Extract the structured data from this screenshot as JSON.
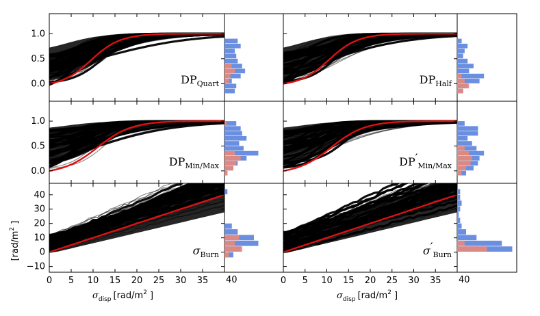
{
  "figure": {
    "shared_xlabel": {
      "symbol": "σ",
      "sub": "disp",
      "unit": "[rad/m",
      "sup": "2",
      "close": " ]"
    },
    "shared_ylabel": {
      "text": "[rad/m",
      "sup": "2",
      "close": " ]"
    },
    "hist_corner_label": "40"
  },
  "colors": {
    "curves": "#000000",
    "mean_line": "#dd1111",
    "hist_blue": "#6b8fe0",
    "hist_red": "#e8887a"
  },
  "chart_data": [
    {
      "id": "dp-quart",
      "type": "line",
      "col": 0,
      "row": 0,
      "label_main": "DP",
      "label_sub": "Quart",
      "prime": "",
      "xlim": [
        0,
        40
      ],
      "ylim": [
        -0.35,
        1.4
      ],
      "yticks": [
        "0.0",
        "0.5",
        "1.0"
      ],
      "ytick_values": [
        0,
        0.5,
        1.0
      ],
      "kind": "sigmoid",
      "mean_curve": {
        "start": 0.0,
        "k": 0.14,
        "mid": 9.5
      },
      "envelope": {
        "low_start": -0.02,
        "high_start": 0.62
      },
      "hist": {
        "bins": [
          -0.15,
          -0.05,
          0.05,
          0.15,
          0.25,
          0.35,
          0.45,
          0.55,
          0.65,
          0.75,
          0.85
        ],
        "blue": [
          14,
          16,
          10,
          22,
          28,
          24,
          18,
          16,
          14,
          22,
          18
        ],
        "red": [
          0,
          0,
          6,
          8,
          14,
          10,
          0,
          0,
          0,
          0,
          0
        ]
      }
    },
    {
      "id": "dp-half",
      "type": "line",
      "col": 1,
      "row": 0,
      "label_main": "DP",
      "label_sub": "Half",
      "prime": "",
      "xlim": [
        0,
        40
      ],
      "ylim": [
        -0.35,
        1.4
      ],
      "yticks": [
        "0.0",
        "0.5",
        "1.0"
      ],
      "ytick_values": [
        0,
        0.5,
        1.0
      ],
      "kind": "sigmoid",
      "mean_curve": {
        "start": 0.0,
        "k": 0.14,
        "mid": 10.5
      },
      "envelope": {
        "low_start": -0.02,
        "high_start": 0.62
      },
      "hist": {
        "bins": [
          -0.15,
          -0.05,
          0.05,
          0.15,
          0.25,
          0.35,
          0.45,
          0.55,
          0.65,
          0.75,
          0.85
        ],
        "blue": [
          8,
          14,
          30,
          36,
          16,
          22,
          14,
          8,
          10,
          14,
          6
        ],
        "red": [
          8,
          16,
          10,
          6,
          0,
          0,
          0,
          0,
          0,
          0,
          0
        ]
      }
    },
    {
      "id": "dp-minmax",
      "type": "line",
      "col": 0,
      "row": 1,
      "label_main": "DP",
      "label_sub": "Min/Max",
      "prime": "",
      "xlim": [
        0,
        40
      ],
      "ylim": [
        -0.25,
        1.4
      ],
      "yticks": [
        "0.0",
        "0.5",
        "1.0"
      ],
      "ytick_values": [
        0,
        0.5,
        1.0
      ],
      "kind": "sigmoid",
      "mean_curve": {
        "start": 0.0,
        "k": 0.12,
        "mid": 11
      },
      "envelope": {
        "low_start": 0.05,
        "high_start": 0.82
      },
      "hist": {
        "bins": [
          -0.05,
          0.05,
          0.15,
          0.25,
          0.35,
          0.45,
          0.55,
          0.65,
          0.75,
          0.85,
          0.95
        ],
        "blue": [
          4,
          12,
          18,
          30,
          46,
          26,
          20,
          30,
          24,
          22,
          16
        ],
        "red": [
          4,
          12,
          16,
          22,
          14,
          0,
          0,
          0,
          0,
          0,
          3
        ]
      }
    },
    {
      "id": "dp-minmax-prime",
      "type": "line",
      "col": 1,
      "row": 1,
      "label_main": "DP",
      "label_sub": "Min/Max",
      "prime": "′",
      "xlim": [
        0,
        40
      ],
      "ylim": [
        -0.25,
        1.4
      ],
      "yticks": [
        "0.0",
        "0.5",
        "1.0"
      ],
      "ytick_values": [
        0,
        0.5,
        1.0
      ],
      "kind": "sigmoid",
      "mean_curve": {
        "start": 0.0,
        "k": 0.12,
        "mid": 11
      },
      "envelope": {
        "low_start": 0.05,
        "high_start": 0.82
      },
      "hist": {
        "bins": [
          -0.05,
          0.05,
          0.15,
          0.25,
          0.35,
          0.45,
          0.55,
          0.65,
          0.75,
          0.85,
          0.95
        ],
        "blue": [
          12,
          22,
          28,
          30,
          36,
          26,
          20,
          14,
          28,
          28,
          10
        ],
        "red": [
          6,
          12,
          18,
          20,
          16,
          10,
          0,
          0,
          0,
          0,
          0
        ]
      }
    },
    {
      "id": "sigma-burn",
      "type": "line",
      "col": 0,
      "row": 2,
      "label_main": "σ",
      "label_sub": "Burn",
      "prime": "",
      "xlim": [
        0,
        40
      ],
      "ylim": [
        -14,
        48
      ],
      "yticks": [
        "−10",
        "0",
        "10",
        "20",
        "30",
        "40"
      ],
      "ytick_values": [
        -10,
        0,
        10,
        20,
        30,
        40
      ],
      "kind": "linear",
      "mean_curve": {
        "intercept": 0,
        "slope": 1.0
      },
      "envelope": {
        "low_intercept": -1,
        "high_intercept": 12,
        "low_slope": 0.74,
        "high_slope": 1.35
      },
      "hist": {
        "bins": [
          -2,
          2,
          6,
          10,
          14,
          18,
          22,
          26,
          30,
          34,
          38,
          42
        ],
        "blue": [
          12,
          22,
          46,
          40,
          18,
          10,
          0,
          0,
          0,
          0,
          0,
          4
        ],
        "red": [
          6,
          24,
          14,
          20,
          0,
          0,
          0,
          0,
          0,
          0,
          0,
          0
        ]
      }
    },
    {
      "id": "sigma-burn-prime",
      "type": "line",
      "col": 1,
      "row": 2,
      "label_main": "σ",
      "label_sub": "Burn",
      "prime": "′",
      "xlim": [
        0,
        40
      ],
      "ylim": [
        -14,
        48
      ],
      "yticks": [
        "−10",
        "0",
        "10",
        "20",
        "30",
        "40"
      ],
      "ytick_values": [
        -10,
        0,
        10,
        20,
        30,
        40
      ],
      "kind": "linear",
      "mean_curve": {
        "intercept": 0,
        "slope": 1.0
      },
      "envelope": {
        "low_intercept": -1,
        "high_intercept": 14,
        "low_slope": 0.74,
        "high_slope": 1.35
      },
      "hist": {
        "bins": [
          -2,
          2,
          6,
          10,
          14,
          18,
          22,
          26,
          30,
          34,
          38,
          42
        ],
        "blue": [
          0,
          74,
          60,
          26,
          12,
          6,
          4,
          2,
          4,
          6,
          4,
          4
        ],
        "red": [
          0,
          40,
          10,
          0,
          0,
          0,
          0,
          0,
          0,
          0,
          0,
          0
        ]
      }
    }
  ],
  "xticks": [
    "0",
    "5",
    "10",
    "15",
    "20",
    "25",
    "30",
    "35",
    "40"
  ],
  "xtick_values": [
    0,
    5,
    10,
    15,
    20,
    25,
    30,
    35,
    40
  ]
}
